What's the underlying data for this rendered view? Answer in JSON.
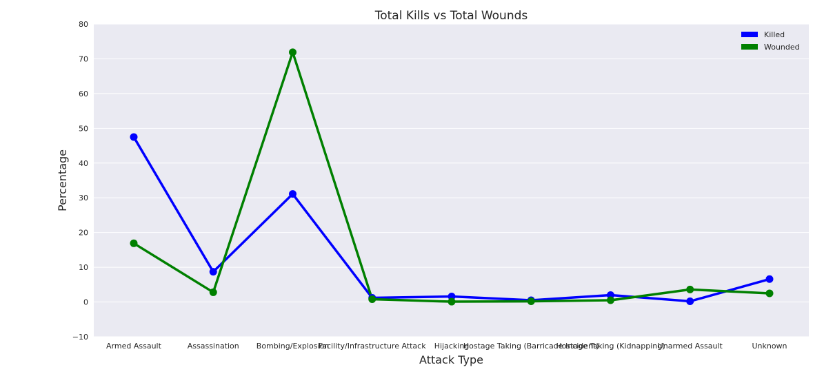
{
  "chart_data": {
    "type": "line",
    "title": "Total Kills vs Total Wounds",
    "xlabel": "Attack Type",
    "ylabel": "Percentage",
    "categories": [
      "Armed Assault",
      "Assassination",
      "Bombing/Explosion",
      "Facility/Infrastructure Attack",
      "Hijacking",
      "Hostage Taking (Barricade Incident)",
      "Hostage Taking (Kidnapping)",
      "Unarmed Assault",
      "Unknown"
    ],
    "ylim": [
      -10,
      80
    ],
    "yticks": [
      -10,
      0,
      10,
      20,
      30,
      40,
      50,
      60,
      70,
      80
    ],
    "grid": true,
    "legend_position": "top-right",
    "series": [
      {
        "name": "Killed",
        "color": "#0000ff",
        "values": [
          47.5,
          8.7,
          31.1,
          1.2,
          1.6,
          0.5,
          2.0,
          0.2,
          6.6
        ]
      },
      {
        "name": "Wounded",
        "color": "#008000",
        "values": [
          16.9,
          2.8,
          71.9,
          0.8,
          0.1,
          0.2,
          0.5,
          3.6,
          2.5
        ]
      }
    ]
  }
}
